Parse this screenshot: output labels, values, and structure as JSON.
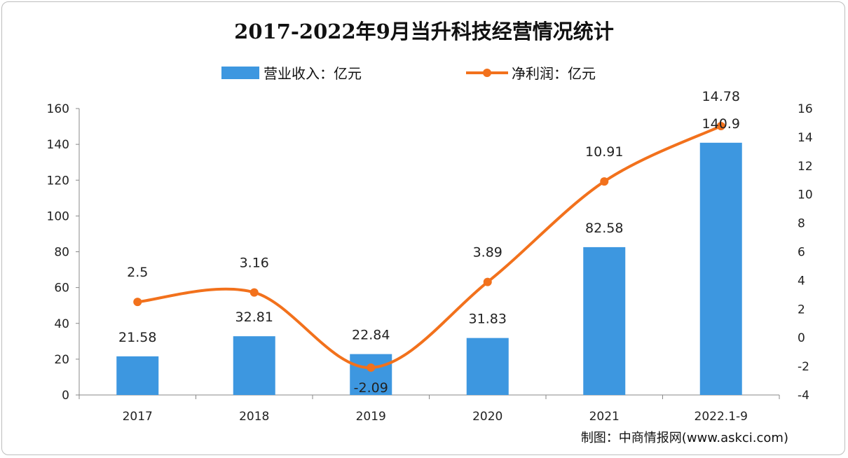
{
  "chart_data": {
    "type": "bar+line",
    "title": "2017-2022年9月当升科技经营情况统计",
    "categories": [
      "2017",
      "2018",
      "2019",
      "2020",
      "2021",
      "2022.1-9"
    ],
    "series": [
      {
        "name": "营业收入：亿元",
        "type": "bar",
        "axis": "left",
        "color": "#3d97e0",
        "values": [
          21.58,
          32.81,
          22.84,
          31.83,
          82.58,
          140.9
        ],
        "labels": [
          "21.58",
          "32.81",
          "22.84",
          "31.83",
          "82.58",
          "140.9"
        ]
      },
      {
        "name": "净利润：亿元",
        "type": "line",
        "axis": "right",
        "color": "#f2711c",
        "values": [
          2.5,
          3.16,
          -2.09,
          3.89,
          10.91,
          14.78
        ],
        "labels": [
          "2.5",
          "3.16",
          "-2.09",
          "3.89",
          "10.91",
          "14.78"
        ]
      }
    ],
    "y_left": {
      "range": [
        0,
        160
      ],
      "ticks": [
        "0",
        "20",
        "40",
        "60",
        "80",
        "100",
        "120",
        "140",
        "160"
      ]
    },
    "y_right": {
      "range": [
        -4,
        16
      ],
      "ticks": [
        "-4",
        "-2",
        "0",
        "2",
        "4",
        "6",
        "8",
        "10",
        "12",
        "14",
        "16"
      ]
    },
    "legend_position": "top-center",
    "grid": false,
    "source": "制图：中商情报网(www.askci.com)"
  }
}
